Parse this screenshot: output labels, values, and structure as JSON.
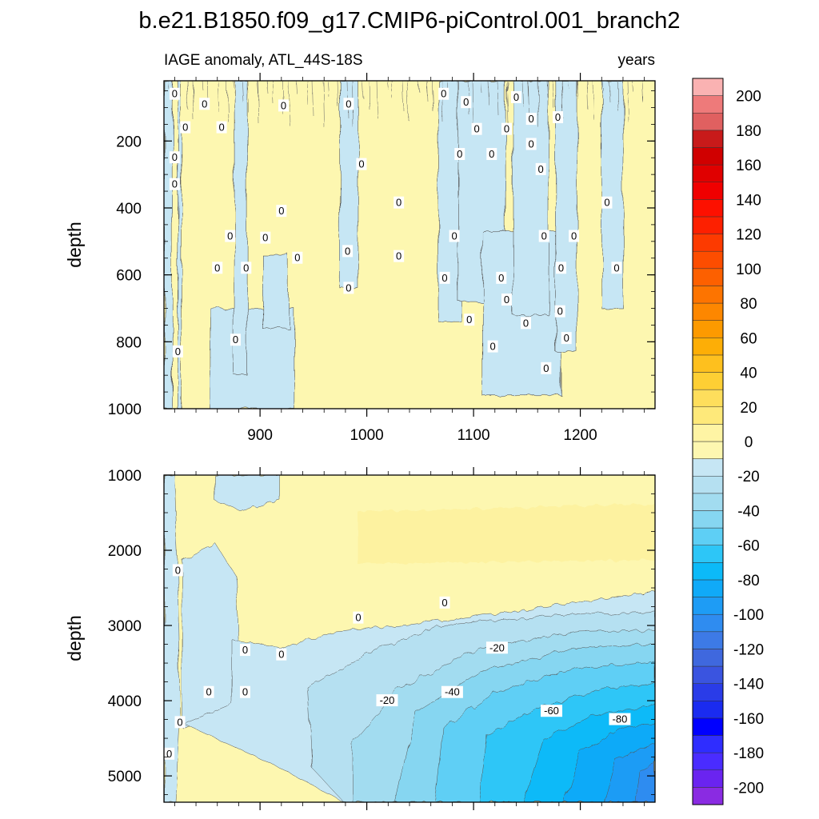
{
  "chart_data": {
    "type": "contour",
    "title": "b.e21.B1850.f09_g17.CMIP6-piControl.001_branch2",
    "left_subtitle": "IAGE anomaly, ATL_44S-18S",
    "right_subtitle": "years",
    "colorbar": {
      "levels": [
        -210,
        -200,
        -190,
        -180,
        -170,
        -160,
        -150,
        -140,
        -130,
        -120,
        -110,
        -100,
        -90,
        -80,
        -70,
        -60,
        -50,
        -40,
        -30,
        -20,
        -10,
        0,
        10,
        20,
        30,
        40,
        50,
        60,
        70,
        80,
        90,
        100,
        110,
        120,
        130,
        140,
        150,
        160,
        170,
        180,
        190,
        200,
        210
      ],
      "tick_labels": [
        "-200",
        "-180",
        "-160",
        "-140",
        "-120",
        "-100",
        "-80",
        "-60",
        "-40",
        "-20",
        "0",
        "20",
        "40",
        "60",
        "80",
        "100",
        "120",
        "140",
        "160",
        "180",
        "200"
      ],
      "colors": [
        "#8a2be2",
        "#6a24f0",
        "#4a2cff",
        "#2f2dff",
        "#0000ff",
        "#1a2bf0",
        "#2a3ce8",
        "#3a54e0",
        "#3f68de",
        "#3d7ae6",
        "#2f8cf0",
        "#1e9cf5",
        "#10aaf8",
        "#0cbaf8",
        "#2dc6f7",
        "#5ecff5",
        "#86d6f1",
        "#a2dcf0",
        "#b5e0f1",
        "#c6e6f4",
        "#fdf7b0",
        "#fef4a4",
        "#fee97a",
        "#fede5c",
        "#fecf34",
        "#fec01e",
        "#fdae06",
        "#fd9a00",
        "#fd8700",
        "#fd7400",
        "#fd6000",
        "#fd4d00",
        "#fd3a00",
        "#fd2000",
        "#fd1000",
        "#f00000",
        "#e00000",
        "#d00000",
        "#c81a1a",
        "#e06060",
        "#ee7a7a",
        "#fab2b2"
      ]
    },
    "panels": [
      {
        "name": "upper",
        "ylabel": "depth",
        "xlim": [
          810,
          1270
        ],
        "ylim": [
          1000,
          20
        ],
        "xticks": [
          900,
          1000,
          1100,
          1200
        ],
        "xtick_labels": [
          "900",
          "1000",
          "1100",
          "1200"
        ],
        "yticks": [
          200,
          400,
          600,
          800,
          1000
        ],
        "ytick_labels": [
          "200",
          "400",
          "600",
          "800",
          "1000"
        ],
        "contour_labels": [
          {
            "text": "0",
            "x": 820,
            "y": 60
          },
          {
            "text": "0",
            "x": 848,
            "y": 90
          },
          {
            "text": "0",
            "x": 922,
            "y": 95
          },
          {
            "text": "0",
            "x": 983,
            "y": 90
          },
          {
            "text": "0",
            "x": 1072,
            "y": 60
          },
          {
            "text": "0",
            "x": 1093,
            "y": 85
          },
          {
            "text": "0",
            "x": 1140,
            "y": 70
          },
          {
            "text": "0",
            "x": 1179,
            "y": 130
          },
          {
            "text": "0",
            "x": 1154,
            "y": 135
          },
          {
            "text": "0",
            "x": 830,
            "y": 160
          },
          {
            "text": "0",
            "x": 864,
            "y": 160
          },
          {
            "text": "0",
            "x": 1103,
            "y": 165
          },
          {
            "text": "0",
            "x": 1131,
            "y": 165
          },
          {
            "text": "0",
            "x": 1154,
            "y": 210
          },
          {
            "text": "0",
            "x": 820,
            "y": 250
          },
          {
            "text": "0",
            "x": 1087,
            "y": 240
          },
          {
            "text": "0",
            "x": 1117,
            "y": 240
          },
          {
            "text": "0",
            "x": 1163,
            "y": 285
          },
          {
            "text": "0",
            "x": 995,
            "y": 270
          },
          {
            "text": "0",
            "x": 820,
            "y": 330
          },
          {
            "text": "0",
            "x": 1030,
            "y": 385
          },
          {
            "text": "0",
            "x": 1225,
            "y": 385
          },
          {
            "text": "0",
            "x": 920,
            "y": 410
          },
          {
            "text": "0",
            "x": 872,
            "y": 485
          },
          {
            "text": "0",
            "x": 905,
            "y": 490
          },
          {
            "text": "0",
            "x": 1082,
            "y": 485
          },
          {
            "text": "0",
            "x": 1166,
            "y": 485
          },
          {
            "text": "0",
            "x": 1194,
            "y": 485
          },
          {
            "text": "0",
            "x": 935,
            "y": 550
          },
          {
            "text": "0",
            "x": 982,
            "y": 530
          },
          {
            "text": "0",
            "x": 1030,
            "y": 545
          },
          {
            "text": "0",
            "x": 860,
            "y": 580
          },
          {
            "text": "0",
            "x": 887,
            "y": 580
          },
          {
            "text": "0",
            "x": 1073,
            "y": 610
          },
          {
            "text": "0",
            "x": 1126,
            "y": 610
          },
          {
            "text": "0",
            "x": 1182,
            "y": 580
          },
          {
            "text": "0",
            "x": 1234,
            "y": 580
          },
          {
            "text": "0",
            "x": 983,
            "y": 640
          },
          {
            "text": "0",
            "x": 1131,
            "y": 675
          },
          {
            "text": "0",
            "x": 1181,
            "y": 710
          },
          {
            "text": "0",
            "x": 1096,
            "y": 735
          },
          {
            "text": "0",
            "x": 1149,
            "y": 745
          },
          {
            "text": "0",
            "x": 1187,
            "y": 790
          },
          {
            "text": "0",
            "x": 877,
            "y": 795
          },
          {
            "text": "0",
            "x": 1118,
            "y": 815
          },
          {
            "text": "0",
            "x": 823,
            "y": 830
          },
          {
            "text": "0",
            "x": 1168,
            "y": 880
          }
        ]
      },
      {
        "name": "lower",
        "ylabel": "depth",
        "xlim": [
          810,
          1270
        ],
        "ylim": [
          5350,
          1000
        ],
        "xticks": [
          900,
          1000,
          1100,
          1200
        ],
        "xtick_labels": [],
        "yticks": [
          1000,
          2000,
          3000,
          4000,
          5000
        ],
        "ytick_labels": [
          "1000",
          "2000",
          "3000",
          "4000",
          "5000"
        ],
        "contour_labels": [
          {
            "text": "0",
            "x": 823,
            "y": 2270
          },
          {
            "text": "0",
            "x": 1073,
            "y": 2700
          },
          {
            "text": "0",
            "x": 992,
            "y": 2900
          },
          {
            "text": "0",
            "x": 886,
            "y": 3330
          },
          {
            "text": "0",
            "x": 920,
            "y": 3390
          },
          {
            "text": "-20",
            "x": 1122,
            "y": 3300
          },
          {
            "text": "0",
            "x": 852,
            "y": 3890
          },
          {
            "text": "0",
            "x": 886,
            "y": 3890
          },
          {
            "text": "-40",
            "x": 1080,
            "y": 3890
          },
          {
            "text": "-20",
            "x": 1019,
            "y": 4000
          },
          {
            "text": "0",
            "x": 825,
            "y": 4290
          },
          {
            "text": "-60",
            "x": 1173,
            "y": 4140
          },
          {
            "text": "-80",
            "x": 1237,
            "y": 4250
          },
          {
            "text": "0",
            "x": 815,
            "y": 4710
          }
        ]
      }
    ]
  },
  "fill_regions": {
    "upper_neg_bands": [
      {
        "x1": 810,
        "x2": 818,
        "y_top": 20,
        "y_bot": 1000,
        "value": -10
      },
      {
        "x1": 823,
        "x2": 826,
        "y_top": 20,
        "y_bot": 1000,
        "value": -10
      },
      {
        "x1": 853,
        "x2": 932,
        "y_top": 700,
        "y_bot": 1000,
        "value": -10
      },
      {
        "x1": 902,
        "x2": 927,
        "y_top": 540,
        "y_bot": 760,
        "value": -10
      },
      {
        "x1": 876,
        "x2": 888,
        "y_top": 20,
        "y_bot": 900,
        "value": -10
      },
      {
        "x1": 975,
        "x2": 992,
        "y_top": 20,
        "y_bot": 640,
        "value": -10
      },
      {
        "x1": 1067,
        "x2": 1089,
        "y_top": 20,
        "y_bot": 740,
        "value": -10
      },
      {
        "x1": 1086,
        "x2": 1130,
        "y_top": 20,
        "y_bot": 680,
        "value": -10
      },
      {
        "x1": 1108,
        "x2": 1182,
        "y_top": 470,
        "y_bot": 960,
        "value": -10
      },
      {
        "x1": 1137,
        "x2": 1170,
        "y_top": 20,
        "y_bot": 720,
        "value": -10
      },
      {
        "x1": 1177,
        "x2": 1197,
        "y_top": 20,
        "y_bot": 830,
        "value": -10
      },
      {
        "x1": 1220,
        "x2": 1240,
        "y_top": 20,
        "y_bot": 700,
        "value": -10
      }
    ]
  }
}
